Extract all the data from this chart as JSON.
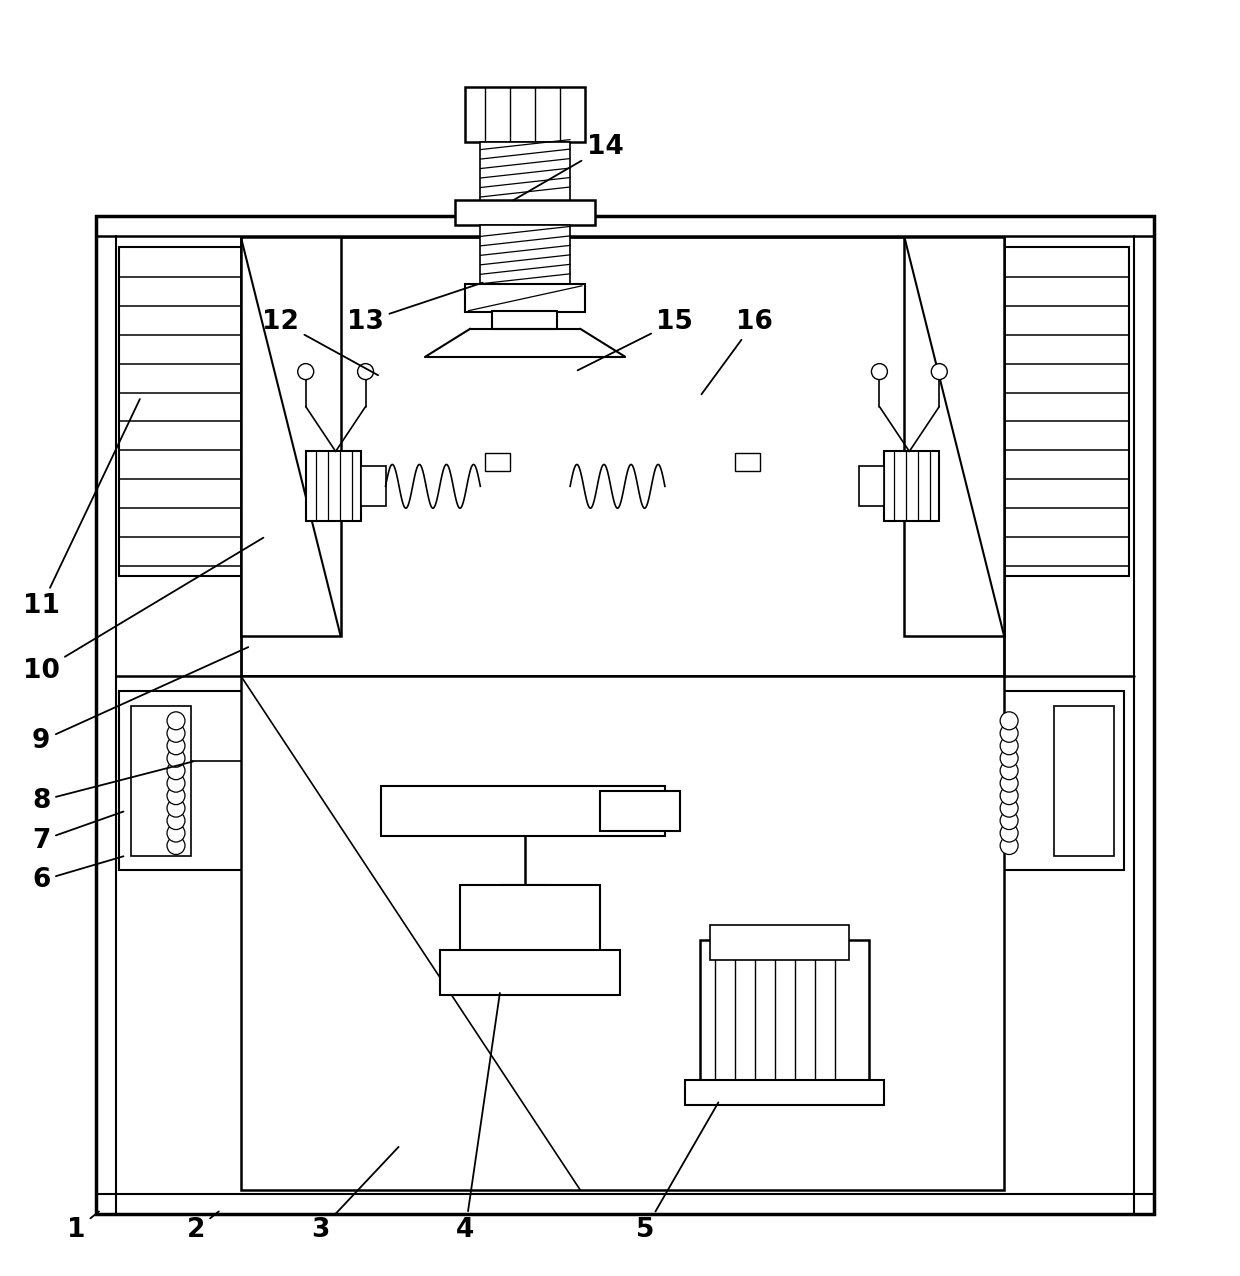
{
  "bg_color": "#ffffff",
  "line_color": "#000000",
  "fig_width": 12.4,
  "fig_height": 12.76
}
